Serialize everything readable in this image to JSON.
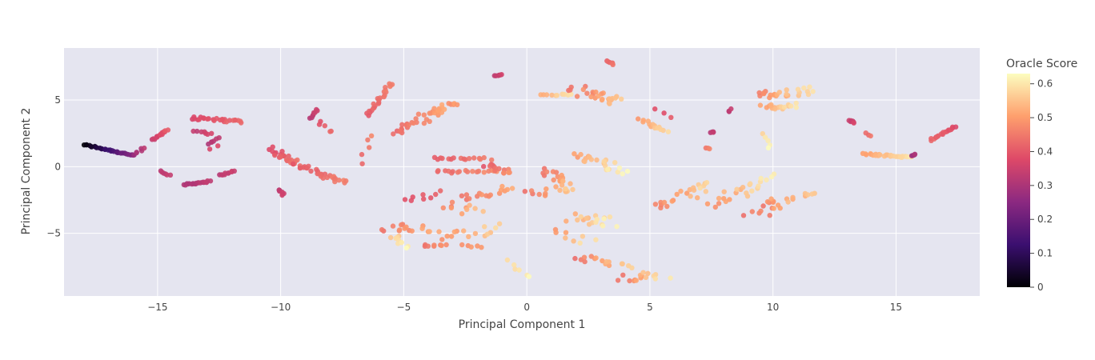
{
  "chart_data": {
    "type": "scatter",
    "title": "",
    "xlabel": "Principal Component 1",
    "ylabel": "Principal Component 2",
    "xlim": [
      -18.8,
      18.4
    ],
    "ylim": [
      -9.7,
      8.9
    ],
    "x_ticks": [
      -15,
      -10,
      -5,
      0,
      5,
      10,
      15
    ],
    "x_tick_labels": [
      "−15",
      "−10",
      "−5",
      "0",
      "5",
      "10",
      "15"
    ],
    "y_ticks": [
      -5,
      0,
      5
    ],
    "y_tick_labels": [
      "−5",
      "0",
      "5"
    ],
    "grid": true,
    "plot_background": "#e5e5f0",
    "colorbar": {
      "title": "Oracle Score",
      "range": [
        0,
        0.63
      ],
      "ticks": [
        0,
        0.1,
        0.2,
        0.3,
        0.4,
        0.5,
        0.6
      ],
      "tick_labels": [
        "0",
        "0.1",
        "0.2",
        "0.3",
        "0.4",
        "0.5",
        "0.6"
      ],
      "colorscale": [
        "#000004",
        "#3b0f70",
        "#8c2981",
        "#de4968",
        "#fe9f6d",
        "#fcfdbf"
      ]
    },
    "clusters": [
      {
        "x0": -18.0,
        "y0": 1.65,
        "x1": -16.0,
        "y1": 0.85,
        "n": 30,
        "c0": 0.0,
        "c1": 0.25,
        "jitter": 0.05
      },
      {
        "x0": -16.0,
        "y0": 0.85,
        "x1": -15.5,
        "y1": 1.4,
        "n": 6,
        "c0": 0.28,
        "c1": 0.32,
        "jitter": 0.08
      },
      {
        "x0": -15.2,
        "y0": 2.0,
        "x1": -14.6,
        "y1": 2.75,
        "n": 14,
        "c0": 0.34,
        "c1": 0.4,
        "jitter": 0.06
      },
      {
        "x0": -14.9,
        "y0": -0.3,
        "x1": -14.5,
        "y1": -0.65,
        "n": 6,
        "c0": 0.32,
        "c1": 0.34,
        "jitter": 0.05
      },
      {
        "x0": -13.9,
        "y0": -1.35,
        "x1": -12.9,
        "y1": -1.1,
        "n": 20,
        "c0": 0.3,
        "c1": 0.33,
        "jitter": 0.05
      },
      {
        "x0": -12.5,
        "y0": -0.65,
        "x1": -11.9,
        "y1": -0.35,
        "n": 10,
        "c0": 0.32,
        "c1": 0.35,
        "jitter": 0.05
      },
      {
        "x0": -13.6,
        "y0": 3.65,
        "x1": -11.6,
        "y1": 3.4,
        "n": 26,
        "c0": 0.37,
        "c1": 0.42,
        "jitter": 0.12
      },
      {
        "x0": -13.5,
        "y0": 2.7,
        "x1": -12.8,
        "y1": 2.45,
        "n": 7,
        "c0": 0.33,
        "c1": 0.36,
        "jitter": 0.06
      },
      {
        "x0": -12.9,
        "y0": 1.75,
        "x1": -12.5,
        "y1": 2.1,
        "n": 6,
        "c0": 0.31,
        "c1": 0.34,
        "jitter": 0.08
      },
      {
        "x0": -12.9,
        "y0": 1.3,
        "x1": -12.5,
        "y1": 1.6,
        "n": 2,
        "c0": 0.37,
        "c1": 0.38,
        "jitter": 0.05
      },
      {
        "x0": -10.4,
        "y0": 1.35,
        "x1": -9.3,
        "y1": 0.1,
        "n": 24,
        "c0": 0.38,
        "c1": 0.44,
        "jitter": 0.2
      },
      {
        "x0": -9.3,
        "y0": 0.1,
        "x1": -7.4,
        "y1": -1.2,
        "n": 28,
        "c0": 0.4,
        "c1": 0.46,
        "jitter": 0.2
      },
      {
        "x0": -10.1,
        "y0": -1.7,
        "x1": -9.9,
        "y1": -2.1,
        "n": 8,
        "c0": 0.32,
        "c1": 0.36,
        "jitter": 0.06
      },
      {
        "x0": -8.8,
        "y0": 3.6,
        "x1": -8.5,
        "y1": 4.3,
        "n": 8,
        "c0": 0.32,
        "c1": 0.35,
        "jitter": 0.05
      },
      {
        "x0": -8.5,
        "y0": 3.3,
        "x1": -7.9,
        "y1": 2.6,
        "n": 5,
        "c0": 0.38,
        "c1": 0.42,
        "jitter": 0.12
      },
      {
        "x0": -6.5,
        "y0": 3.8,
        "x1": -5.5,
        "y1": 6.3,
        "n": 24,
        "c0": 0.4,
        "c1": 0.46,
        "jitter": 0.1
      },
      {
        "x0": -6.8,
        "y0": 0.3,
        "x1": -6.2,
        "y1": 2.5,
        "n": 5,
        "c0": 0.42,
        "c1": 0.46,
        "jitter": 0.2
      },
      {
        "x0": -5.4,
        "y0": 2.5,
        "x1": -3.2,
        "y1": 4.6,
        "n": 34,
        "c0": 0.42,
        "c1": 0.52,
        "jitter": 0.3
      },
      {
        "x0": -3.2,
        "y0": 4.7,
        "x1": -2.8,
        "y1": 4.7,
        "n": 5,
        "c0": 0.48,
        "c1": 0.5,
        "jitter": 0.06
      },
      {
        "x0": -1.3,
        "y0": 6.8,
        "x1": -1.0,
        "y1": 6.9,
        "n": 6,
        "c0": 0.33,
        "c1": 0.35,
        "jitter": 0.03
      },
      {
        "x0": -4.8,
        "y0": -2.5,
        "x1": -3.6,
        "y1": -1.9,
        "n": 8,
        "c0": 0.38,
        "c1": 0.42,
        "jitter": 0.3
      },
      {
        "x0": -3.8,
        "y0": 0.6,
        "x1": -1.5,
        "y1": 0.6,
        "n": 16,
        "c0": 0.4,
        "c1": 0.46,
        "jitter": 0.1
      },
      {
        "x0": -3.7,
        "y0": -0.4,
        "x1": -1.2,
        "y1": -0.35,
        "n": 18,
        "c0": 0.42,
        "c1": 0.48,
        "jitter": 0.1
      },
      {
        "x0": -1.6,
        "y0": 0.2,
        "x1": -0.7,
        "y1": -0.5,
        "n": 14,
        "c0": 0.4,
        "c1": 0.48,
        "jitter": 0.2
      },
      {
        "x0": -2.5,
        "y0": -2.5,
        "x1": -0.8,
        "y1": -1.6,
        "n": 16,
        "c0": 0.44,
        "c1": 0.52,
        "jitter": 0.3
      },
      {
        "x0": -3.2,
        "y0": -2.8,
        "x1": -2.0,
        "y1": -3.5,
        "n": 10,
        "c0": 0.46,
        "c1": 0.56,
        "jitter": 0.4
      },
      {
        "x0": -5.8,
        "y0": -4.6,
        "x1": -3.8,
        "y1": -4.8,
        "n": 16,
        "c0": 0.44,
        "c1": 0.52,
        "jitter": 0.4
      },
      {
        "x0": -5.4,
        "y0": -5.3,
        "x1": -4.9,
        "y1": -6.0,
        "n": 10,
        "c0": 0.56,
        "c1": 0.62,
        "jitter": 0.2
      },
      {
        "x0": -4.2,
        "y0": -5.9,
        "x1": -3.3,
        "y1": -5.9,
        "n": 8,
        "c0": 0.44,
        "c1": 0.48,
        "jitter": 0.08
      },
      {
        "x0": -3.3,
        "y0": -5.1,
        "x1": -1.2,
        "y1": -4.6,
        "n": 14,
        "c0": 0.48,
        "c1": 0.58,
        "jitter": 0.4
      },
      {
        "x0": -2.6,
        "y0": -5.9,
        "x1": -1.9,
        "y1": -6.0,
        "n": 5,
        "c0": 0.48,
        "c1": 0.5,
        "jitter": 0.08
      },
      {
        "x0": -0.8,
        "y0": -7.1,
        "x1": 0.2,
        "y1": -8.3,
        "n": 6,
        "c0": 0.58,
        "c1": 0.62,
        "jitter": 0.12
      },
      {
        "x0": 0.6,
        "y0": 5.35,
        "x1": 1.8,
        "y1": 5.45,
        "n": 10,
        "c0": 0.52,
        "c1": 0.6,
        "jitter": 0.06
      },
      {
        "x0": 1.9,
        "y0": 5.8,
        "x1": 3.9,
        "y1": 4.8,
        "n": 26,
        "c0": 0.44,
        "c1": 0.56,
        "jitter": 0.35
      },
      {
        "x0": 3.3,
        "y0": 7.9,
        "x1": 3.5,
        "y1": 7.7,
        "n": 6,
        "c0": 0.42,
        "c1": 0.44,
        "jitter": 0.05
      },
      {
        "x0": 4.6,
        "y0": 3.5,
        "x1": 5.6,
        "y1": 2.6,
        "n": 14,
        "c0": 0.5,
        "c1": 0.58,
        "jitter": 0.15
      },
      {
        "x0": 5.3,
        "y0": 4.3,
        "x1": 5.9,
        "y1": 3.6,
        "n": 3,
        "c0": 0.38,
        "c1": 0.4,
        "jitter": 0.1
      },
      {
        "x0": 0.8,
        "y0": -0.3,
        "x1": 1.8,
        "y1": -1.7,
        "n": 20,
        "c0": 0.44,
        "c1": 0.56,
        "jitter": 0.3
      },
      {
        "x0": 0.0,
        "y0": -2.1,
        "x1": 1.8,
        "y1": -1.6,
        "n": 12,
        "c0": 0.44,
        "c1": 0.56,
        "jitter": 0.3
      },
      {
        "x0": 2.1,
        "y0": 1.0,
        "x1": 3.8,
        "y1": -0.3,
        "n": 24,
        "c0": 0.5,
        "c1": 0.62,
        "jitter": 0.3
      },
      {
        "x0": 1.8,
        "y0": -3.9,
        "x1": 3.5,
        "y1": -4.2,
        "n": 18,
        "c0": 0.52,
        "c1": 0.62,
        "jitter": 0.4
      },
      {
        "x0": 1.2,
        "y0": -5.0,
        "x1": 2.6,
        "y1": -5.5,
        "n": 8,
        "c0": 0.48,
        "c1": 0.6,
        "jitter": 0.3
      },
      {
        "x0": 2.0,
        "y0": -6.8,
        "x1": 4.0,
        "y1": -7.5,
        "n": 16,
        "c0": 0.44,
        "c1": 0.58,
        "jitter": 0.3
      },
      {
        "x0": 3.8,
        "y0": -8.3,
        "x1": 5.6,
        "y1": -8.2,
        "n": 16,
        "c0": 0.44,
        "c1": 0.6,
        "jitter": 0.3
      },
      {
        "x0": 5.4,
        "y0": -3.0,
        "x1": 7.4,
        "y1": -1.3,
        "n": 22,
        "c0": 0.46,
        "c1": 0.58,
        "jitter": 0.4
      },
      {
        "x0": 7.5,
        "y0": -2.8,
        "x1": 9.8,
        "y1": -0.7,
        "n": 24,
        "c0": 0.48,
        "c1": 0.62,
        "jitter": 0.5
      },
      {
        "x0": 9.2,
        "y0": -3.5,
        "x1": 11.4,
        "y1": -2.1,
        "n": 24,
        "c0": 0.44,
        "c1": 0.56,
        "jitter": 0.5
      },
      {
        "x0": 9.3,
        "y0": 5.4,
        "x1": 11.6,
        "y1": 5.7,
        "n": 24,
        "c0": 0.46,
        "c1": 0.6,
        "jitter": 0.3
      },
      {
        "x0": 9.6,
        "y0": 4.4,
        "x1": 10.9,
        "y1": 4.6,
        "n": 18,
        "c0": 0.5,
        "c1": 0.6,
        "jitter": 0.2
      },
      {
        "x0": 9.6,
        "y0": 2.4,
        "x1": 9.9,
        "y1": 1.4,
        "n": 5,
        "c0": 0.58,
        "c1": 0.62,
        "jitter": 0.1
      },
      {
        "x0": 7.3,
        "y0": 1.4,
        "x1": 7.4,
        "y1": 1.3,
        "n": 3,
        "c0": 0.44,
        "c1": 0.46,
        "jitter": 0.04
      },
      {
        "x0": 7.5,
        "y0": 2.6,
        "x1": 7.6,
        "y1": 2.6,
        "n": 4,
        "c0": 0.32,
        "c1": 0.34,
        "jitter": 0.04
      },
      {
        "x0": 8.2,
        "y0": 4.1,
        "x1": 8.3,
        "y1": 4.3,
        "n": 3,
        "c0": 0.32,
        "c1": 0.34,
        "jitter": 0.04
      },
      {
        "x0": 13.1,
        "y0": 3.5,
        "x1": 13.3,
        "y1": 3.3,
        "n": 6,
        "c0": 0.34,
        "c1": 0.36,
        "jitter": 0.04
      },
      {
        "x0": 13.8,
        "y0": 2.5,
        "x1": 14.0,
        "y1": 2.3,
        "n": 3,
        "c0": 0.42,
        "c1": 0.44,
        "jitter": 0.04
      },
      {
        "x0": 13.7,
        "y0": 0.95,
        "x1": 15.6,
        "y1": 0.7,
        "n": 28,
        "c0": 0.5,
        "c1": 0.6,
        "jitter": 0.06
      },
      {
        "x0": 15.6,
        "y0": 0.85,
        "x1": 15.8,
        "y1": 0.95,
        "n": 4,
        "c0": 0.28,
        "c1": 0.3,
        "jitter": 0.04
      },
      {
        "x0": 16.4,
        "y0": 2.0,
        "x1": 17.4,
        "y1": 3.0,
        "n": 18,
        "c0": 0.42,
        "c1": 0.38,
        "jitter": 0.05
      }
    ]
  }
}
